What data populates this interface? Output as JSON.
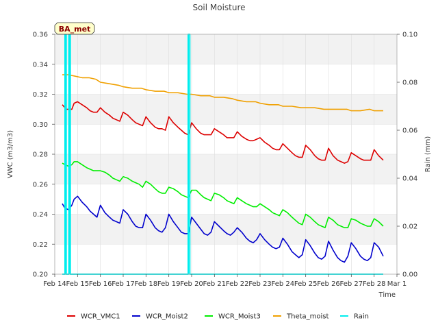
{
  "chart_data": {
    "type": "line",
    "title": "Soil Moisture",
    "badge": "BA_met",
    "xlabel": "Time",
    "ylabel": "VWC (m3/m3)",
    "y2label": "Rain (mm)",
    "xlim": [
      0,
      15
    ],
    "ylim": [
      0.2,
      0.36
    ],
    "y2lim": [
      0.0,
      0.1
    ],
    "x_ticks": [
      {
        "x": 0,
        "label": "Feb 14"
      },
      {
        "x": 1,
        "label": "Feb 15"
      },
      {
        "x": 2,
        "label": "Feb 16"
      },
      {
        "x": 3,
        "label": "Feb 17"
      },
      {
        "x": 4,
        "label": "Feb 18"
      },
      {
        "x": 5,
        "label": "Feb 19"
      },
      {
        "x": 6,
        "label": "Feb 20"
      },
      {
        "x": 7,
        "label": "Feb 21"
      },
      {
        "x": 8,
        "label": "Feb 22"
      },
      {
        "x": 9,
        "label": "Feb 23"
      },
      {
        "x": 10,
        "label": "Feb 24"
      },
      {
        "x": 11,
        "label": "Feb 25"
      },
      {
        "x": 12,
        "label": "Feb 26"
      },
      {
        "x": 13,
        "label": "Feb 27"
      },
      {
        "x": 14,
        "label": "Feb 28"
      },
      {
        "x": 15,
        "label": "Mar 1"
      }
    ],
    "y_ticks": [
      0.2,
      0.22,
      0.24,
      0.26,
      0.28,
      0.3,
      0.32,
      0.34,
      0.36
    ],
    "y_tick_labels": [
      "0.20",
      "0.22",
      "0.24",
      "0.26",
      "0.28",
      "0.30",
      "0.32",
      "0.34",
      "0.36"
    ],
    "y2_ticks": [
      0.0,
      0.02,
      0.04,
      0.06,
      0.08,
      0.1
    ],
    "y2_tick_labels": [
      "0.00",
      "0.02",
      "0.04",
      "0.06",
      "0.08",
      "0.10"
    ],
    "grid": true,
    "legend_position": "bottom",
    "series": [
      {
        "name": "WCR_VMC1",
        "color": "#dd0000",
        "axis": "left",
        "x": [
          0.33,
          0.45,
          0.5,
          0.75,
          0.85,
          1.0,
          1.2,
          1.4,
          1.55,
          1.7,
          1.85,
          2.0,
          2.2,
          2.4,
          2.55,
          2.7,
          2.85,
          3.0,
          3.2,
          3.4,
          3.55,
          3.7,
          3.85,
          4.0,
          4.2,
          4.4,
          4.55,
          4.7,
          4.85,
          5.0,
          5.2,
          5.4,
          5.55,
          5.7,
          5.85,
          6.0,
          6.2,
          6.4,
          6.55,
          6.7,
          6.85,
          7.0,
          7.2,
          7.4,
          7.55,
          7.7,
          7.85,
          8.0,
          8.2,
          8.4,
          8.55,
          8.7,
          8.85,
          9.0,
          9.2,
          9.4,
          9.55,
          9.7,
          9.85,
          10.0,
          10.2,
          10.4,
          10.55,
          10.7,
          10.85,
          11.0,
          11.2,
          11.4,
          11.55,
          11.7,
          11.85,
          12.0,
          12.2,
          12.4,
          12.55,
          12.7,
          12.85,
          13.0,
          13.2,
          13.4,
          13.55,
          13.7,
          13.85,
          14.0,
          14.2,
          14.4
        ],
        "y": [
          0.313,
          0.311,
          0.31,
          0.31,
          0.314,
          0.315,
          0.313,
          0.311,
          0.309,
          0.308,
          0.308,
          0.311,
          0.308,
          0.306,
          0.304,
          0.303,
          0.302,
          0.308,
          0.306,
          0.303,
          0.301,
          0.3,
          0.299,
          0.305,
          0.301,
          0.298,
          0.297,
          0.297,
          0.296,
          0.305,
          0.301,
          0.298,
          0.296,
          0.294,
          0.293,
          0.301,
          0.297,
          0.294,
          0.293,
          0.293,
          0.293,
          0.297,
          0.295,
          0.293,
          0.291,
          0.291,
          0.291,
          0.295,
          0.292,
          0.29,
          0.289,
          0.289,
          0.29,
          0.291,
          0.288,
          0.286,
          0.284,
          0.283,
          0.283,
          0.287,
          0.284,
          0.281,
          0.279,
          0.278,
          0.278,
          0.286,
          0.283,
          0.279,
          0.277,
          0.276,
          0.276,
          0.284,
          0.279,
          0.276,
          0.275,
          0.274,
          0.275,
          0.281,
          0.279,
          0.277,
          0.276,
          0.276,
          0.276,
          0.283,
          0.279,
          0.276
        ]
      },
      {
        "name": "WCR_Moist2",
        "color": "#0000cc",
        "axis": "left",
        "x": [
          0.33,
          0.45,
          0.6,
          0.75,
          0.85,
          1.0,
          1.2,
          1.4,
          1.55,
          1.7,
          1.85,
          2.0,
          2.2,
          2.4,
          2.55,
          2.7,
          2.85,
          3.0,
          3.2,
          3.4,
          3.55,
          3.7,
          3.85,
          4.0,
          4.2,
          4.4,
          4.55,
          4.7,
          4.85,
          5.0,
          5.2,
          5.4,
          5.55,
          5.7,
          5.85,
          6.0,
          6.2,
          6.4,
          6.55,
          6.7,
          6.85,
          7.0,
          7.2,
          7.4,
          7.55,
          7.7,
          7.85,
          8.0,
          8.2,
          8.4,
          8.55,
          8.7,
          8.85,
          9.0,
          9.2,
          9.4,
          9.55,
          9.7,
          9.85,
          10.0,
          10.2,
          10.4,
          10.55,
          10.7,
          10.85,
          11.0,
          11.2,
          11.4,
          11.55,
          11.7,
          11.85,
          12.0,
          12.2,
          12.4,
          12.55,
          12.7,
          12.85,
          13.0,
          13.2,
          13.4,
          13.55,
          13.7,
          13.85,
          14.0,
          14.2,
          14.4
        ],
        "y": [
          0.247,
          0.244,
          0.243,
          0.246,
          0.25,
          0.252,
          0.248,
          0.245,
          0.242,
          0.24,
          0.238,
          0.246,
          0.241,
          0.238,
          0.236,
          0.235,
          0.234,
          0.243,
          0.24,
          0.235,
          0.232,
          0.231,
          0.231,
          0.24,
          0.236,
          0.231,
          0.229,
          0.228,
          0.231,
          0.24,
          0.235,
          0.231,
          0.228,
          0.227,
          0.227,
          0.238,
          0.234,
          0.23,
          0.227,
          0.226,
          0.228,
          0.235,
          0.232,
          0.229,
          0.227,
          0.226,
          0.228,
          0.231,
          0.228,
          0.224,
          0.222,
          0.221,
          0.223,
          0.227,
          0.223,
          0.22,
          0.218,
          0.217,
          0.218,
          0.224,
          0.22,
          0.215,
          0.213,
          0.211,
          0.213,
          0.223,
          0.219,
          0.214,
          0.211,
          0.21,
          0.212,
          0.222,
          0.216,
          0.211,
          0.209,
          0.208,
          0.212,
          0.221,
          0.217,
          0.212,
          0.21,
          0.209,
          0.211,
          0.221,
          0.218,
          0.212
        ]
      },
      {
        "name": "WCR_Moist3",
        "color": "#00ee00",
        "axis": "left",
        "x": [
          0.33,
          0.45,
          0.6,
          0.75,
          0.85,
          1.0,
          1.2,
          1.4,
          1.55,
          1.7,
          1.85,
          2.0,
          2.2,
          2.4,
          2.55,
          2.7,
          2.85,
          3.0,
          3.2,
          3.4,
          3.55,
          3.7,
          3.85,
          4.0,
          4.2,
          4.4,
          4.55,
          4.7,
          4.85,
          5.0,
          5.2,
          5.4,
          5.55,
          5.7,
          5.85,
          6.0,
          6.2,
          6.4,
          6.55,
          6.7,
          6.85,
          7.0,
          7.2,
          7.4,
          7.55,
          7.7,
          7.85,
          8.0,
          8.2,
          8.4,
          8.55,
          8.7,
          8.85,
          9.0,
          9.2,
          9.4,
          9.55,
          9.7,
          9.85,
          10.0,
          10.2,
          10.4,
          10.55,
          10.7,
          10.85,
          11.0,
          11.2,
          11.4,
          11.55,
          11.7,
          11.85,
          12.0,
          12.2,
          12.4,
          12.55,
          12.7,
          12.85,
          13.0,
          13.2,
          13.4,
          13.55,
          13.7,
          13.85,
          14.0,
          14.2,
          14.4
        ],
        "y": [
          0.274,
          0.273,
          0.272,
          0.273,
          0.275,
          0.275,
          0.273,
          0.271,
          0.27,
          0.269,
          0.269,
          0.269,
          0.268,
          0.266,
          0.264,
          0.263,
          0.262,
          0.265,
          0.264,
          0.262,
          0.261,
          0.26,
          0.258,
          0.262,
          0.26,
          0.257,
          0.255,
          0.254,
          0.254,
          0.258,
          0.257,
          0.255,
          0.253,
          0.252,
          0.251,
          0.256,
          0.256,
          0.253,
          0.251,
          0.25,
          0.249,
          0.254,
          0.253,
          0.251,
          0.249,
          0.248,
          0.247,
          0.251,
          0.249,
          0.247,
          0.246,
          0.245,
          0.245,
          0.247,
          0.245,
          0.243,
          0.241,
          0.24,
          0.239,
          0.243,
          0.241,
          0.238,
          0.236,
          0.234,
          0.233,
          0.24,
          0.238,
          0.235,
          0.233,
          0.232,
          0.231,
          0.238,
          0.236,
          0.233,
          0.232,
          0.231,
          0.231,
          0.237,
          0.236,
          0.234,
          0.233,
          0.232,
          0.232,
          0.237,
          0.235,
          0.232
        ]
      },
      {
        "name": "Theta_moist",
        "color": "#f0a000",
        "axis": "left",
        "x": [
          0.33,
          0.6,
          0.9,
          1.2,
          1.5,
          1.8,
          2.0,
          2.4,
          2.8,
          3.0,
          3.4,
          3.8,
          4.0,
          4.4,
          4.8,
          5.0,
          5.4,
          5.8,
          6.0,
          6.4,
          6.8,
          7.0,
          7.4,
          7.8,
          8.0,
          8.4,
          8.8,
          9.0,
          9.4,
          9.8,
          10.0,
          10.4,
          10.8,
          11.0,
          11.4,
          11.8,
          12.0,
          12.4,
          12.8,
          13.0,
          13.4,
          13.8,
          14.0,
          14.4
        ],
        "y": [
          0.333,
          0.333,
          0.332,
          0.331,
          0.331,
          0.33,
          0.328,
          0.327,
          0.326,
          0.325,
          0.324,
          0.324,
          0.323,
          0.322,
          0.322,
          0.321,
          0.321,
          0.32,
          0.32,
          0.319,
          0.319,
          0.318,
          0.318,
          0.317,
          0.316,
          0.315,
          0.315,
          0.314,
          0.313,
          0.313,
          0.312,
          0.312,
          0.311,
          0.311,
          0.311,
          0.31,
          0.31,
          0.31,
          0.31,
          0.309,
          0.309,
          0.31,
          0.309,
          0.309
        ]
      },
      {
        "name": "Rain",
        "color": "#00eeee",
        "axis": "right",
        "style": "steps",
        "x": [
          0.33,
          0.45,
          0.45,
          0.5,
          0.5,
          0.62,
          0.62,
          0.68,
          0.68,
          5.85,
          5.85,
          5.92,
          5.92,
          14.4
        ],
        "y": [
          0,
          0,
          0.1,
          0.1,
          0,
          0,
          0.1,
          0.1,
          0,
          0,
          0.1,
          0.1,
          0,
          0
        ]
      }
    ]
  }
}
